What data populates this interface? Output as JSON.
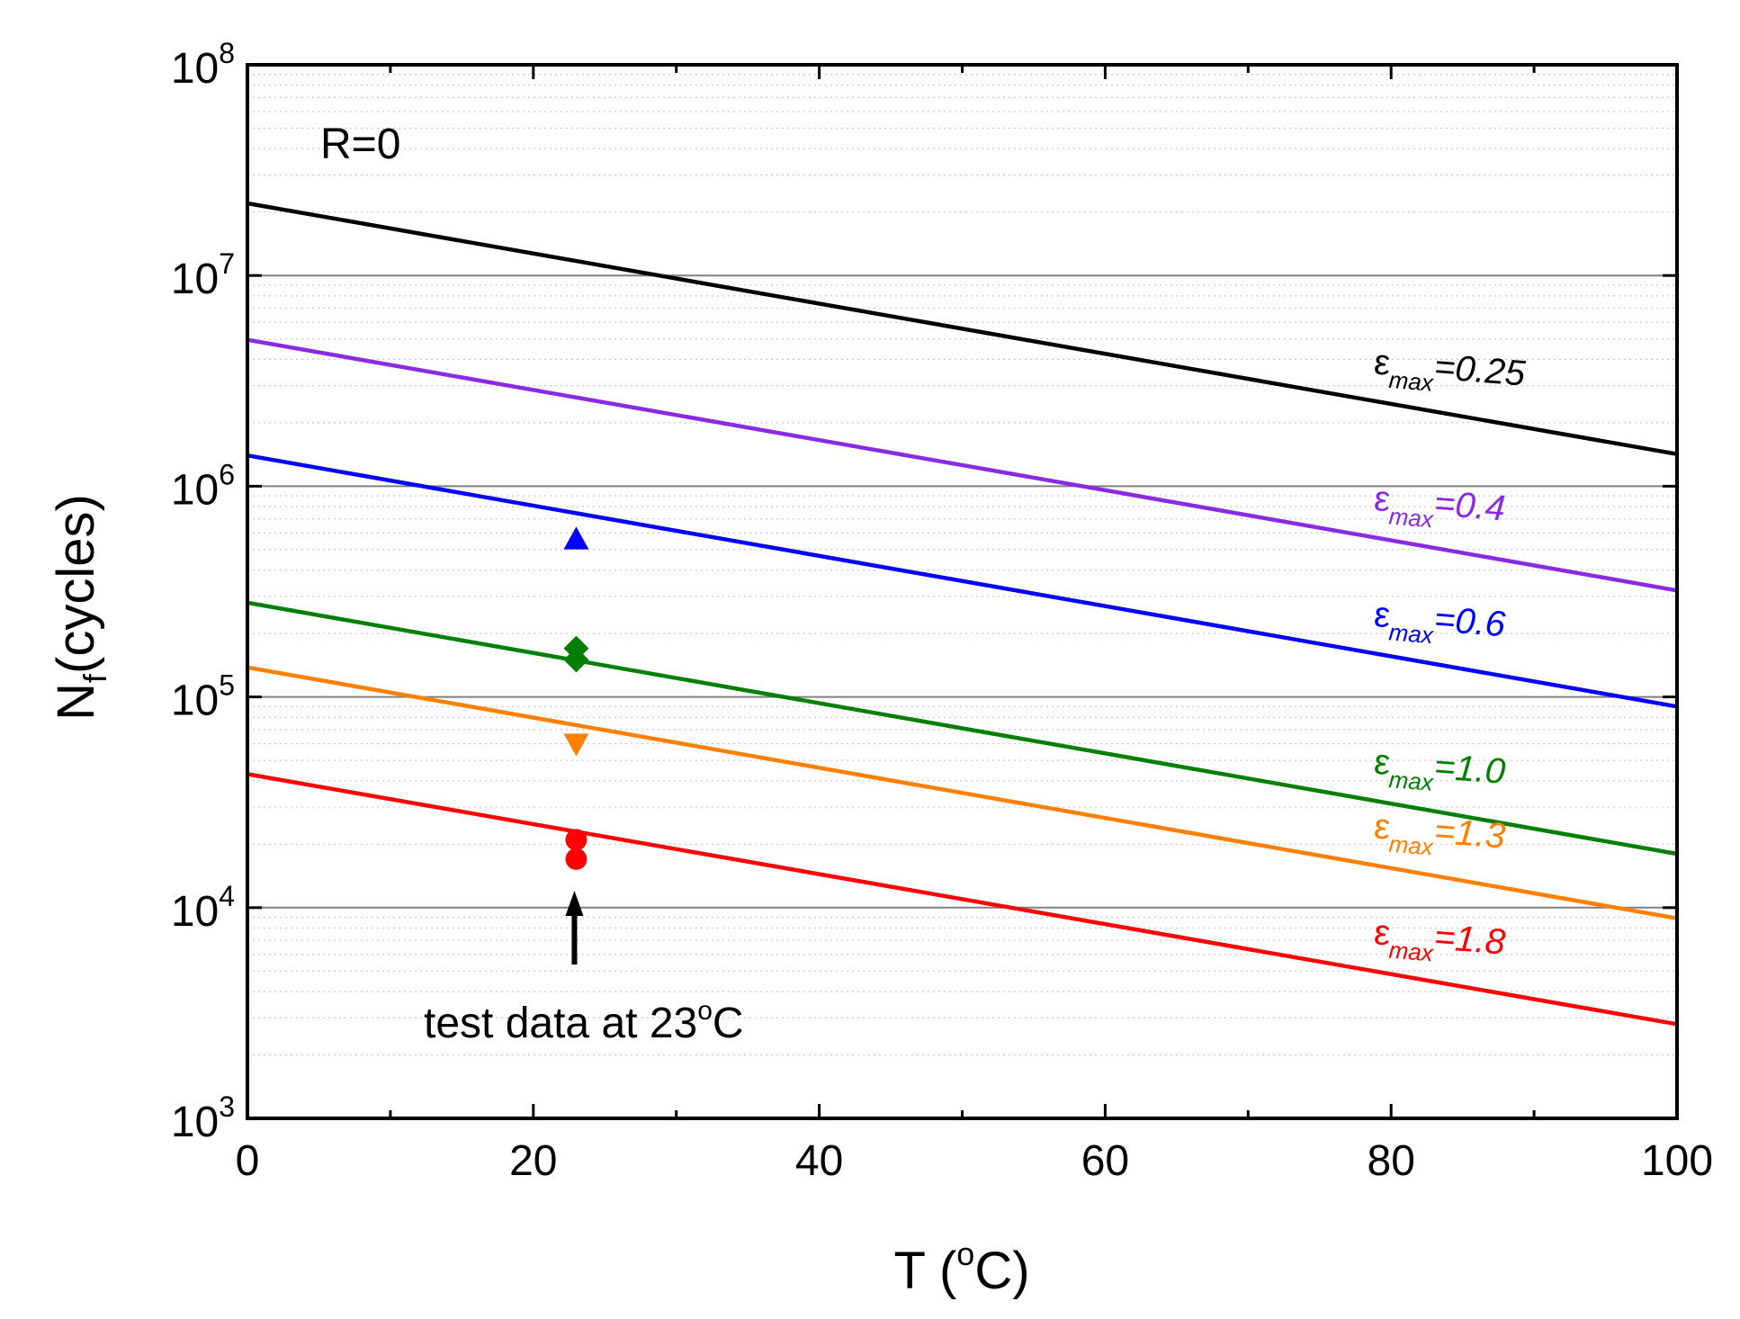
{
  "chart_data": {
    "type": "line",
    "title": "",
    "xlabel": "T (",
    "xlabel_sup": "o",
    "xlabel_suffix": "C)",
    "ylabel_main": "N",
    "ylabel_sub": "f",
    "ylabel_suffix": "(cycles)",
    "xlim": [
      0,
      100
    ],
    "ylim": [
      1000,
      100000000
    ],
    "yscale": "log",
    "xticks": [
      0,
      20,
      40,
      60,
      80,
      100
    ],
    "xtick_labels": [
      "0",
      "20",
      "40",
      "60",
      "80",
      "100"
    ],
    "yticks_exp": [
      3,
      4,
      5,
      6,
      7,
      8
    ],
    "ytick_base": "10",
    "ytick_exp_labels": [
      "3",
      "4",
      "5",
      "6",
      "7",
      "8"
    ],
    "grid": "horizontal major and minor (y)",
    "annotation_condition": "R=0",
    "annotation_arrow": {
      "text_before": "test data at 23",
      "text_sup": "o",
      "text_after": "C",
      "x": 23
    },
    "label_symbol": "ε",
    "label_subscript": "max",
    "series": [
      {
        "name": "εmax=0.25",
        "label_value": "=0.25",
        "color": "#000000",
        "x": [
          0,
          100
        ],
        "y": [
          22000000,
          1420000
        ]
      },
      {
        "name": "εmax=0.4",
        "label_value": "=0.4",
        "color": "#8a2be2",
        "x": [
          0,
          100
        ],
        "y": [
          4950000,
          320000
        ]
      },
      {
        "name": "εmax=0.6",
        "label_value": "=0.6",
        "color": "#0000ff",
        "x": [
          0,
          100
        ],
        "y": [
          1400000,
          90000
        ]
      },
      {
        "name": "εmax=1.0",
        "label_value": "=1.0",
        "color": "#007f00",
        "x": [
          0,
          100
        ],
        "y": [
          280000,
          18000
        ]
      },
      {
        "name": "εmax=1.3",
        "label_value": "=1.3",
        "color": "#ff8000",
        "x": [
          0,
          100
        ],
        "y": [
          138000,
          8900
        ]
      },
      {
        "name": "εmax=1.8",
        "label_value": "=1.8",
        "color": "#ff0000",
        "x": [
          0,
          100
        ],
        "y": [
          43000,
          2800
        ]
      }
    ],
    "test_points": [
      {
        "series": "εmax=0.6",
        "marker": "triangle-up",
        "color": "#0000ff",
        "x": 23,
        "y": 560000
      },
      {
        "series": "εmax=1.0",
        "marker": "diamond",
        "color": "#007f00",
        "x": 23,
        "y": 170000
      },
      {
        "series": "εmax=1.0",
        "marker": "diamond",
        "color": "#007f00",
        "x": 23,
        "y": 150000
      },
      {
        "series": "εmax=1.3",
        "marker": "triangle-down",
        "color": "#ff8000",
        "x": 23,
        "y": 60000
      },
      {
        "series": "εmax=1.8",
        "marker": "circle",
        "color": "#ff0000",
        "x": 23,
        "y": 21000
      },
      {
        "series": "εmax=1.8",
        "marker": "circle",
        "color": "#ff0000",
        "x": 23,
        "y": 17000
      }
    ]
  }
}
